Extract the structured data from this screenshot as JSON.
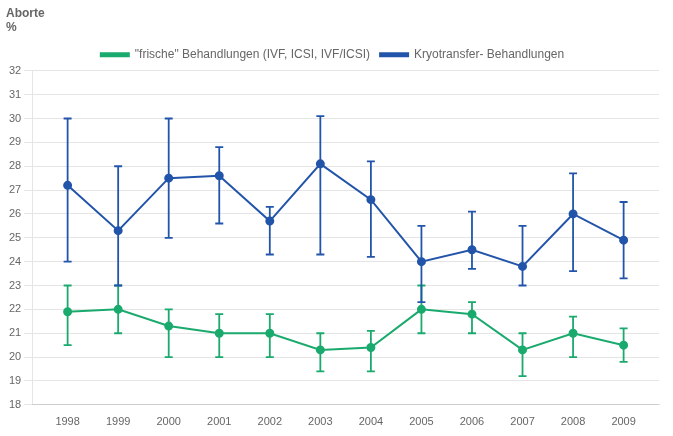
{
  "chart_data": {
    "type": "line",
    "ylabel": [
      "Aborte",
      "%"
    ],
    "x": [
      1998,
      1999,
      2000,
      2001,
      2002,
      2003,
      2004,
      2005,
      2006,
      2007,
      2008,
      2009
    ],
    "series": [
      {
        "name": "\"frische\" Behandlungen (IVF, ICSI, IVF/ICSI)",
        "color": "#1aaa6e",
        "values": [
          21.9,
          22.0,
          21.3,
          21.0,
          21.0,
          20.3,
          20.4,
          22.0,
          21.8,
          20.3,
          21.0,
          20.5
        ],
        "error_up": [
          1.1,
          1.0,
          0.7,
          0.8,
          0.8,
          0.7,
          0.7,
          1.0,
          0.5,
          0.7,
          0.7,
          0.7
        ],
        "error_down": [
          1.4,
          1.0,
          1.3,
          1.0,
          1.0,
          0.9,
          1.0,
          1.0,
          0.8,
          1.1,
          1.0,
          0.7
        ]
      },
      {
        "name": "Kryotransfer- Behandlungen",
        "color": "#2255aa",
        "values": [
          27.2,
          25.3,
          27.5,
          27.6,
          25.7,
          28.1,
          26.6,
          24.0,
          24.5,
          23.8,
          26.0,
          24.9
        ],
        "error_up": [
          2.8,
          2.7,
          2.5,
          1.2,
          0.6,
          2.0,
          1.6,
          1.5,
          1.6,
          1.7,
          1.7,
          1.6
        ],
        "error_down": [
          3.2,
          2.3,
          2.5,
          2.0,
          1.4,
          3.8,
          2.4,
          1.7,
          0.8,
          0.8,
          2.4,
          1.6
        ]
      }
    ],
    "marker": "circle",
    "line_style": "solid",
    "xlim": [
      1997.3,
      2009.7
    ],
    "xticks": [
      1998,
      1999,
      2000,
      2001,
      2002,
      2003,
      2004,
      2005,
      2006,
      2007,
      2008,
      2009
    ],
    "ylim": [
      18,
      32
    ],
    "yticks": [
      18,
      19,
      20,
      21,
      22,
      23,
      24,
      25,
      26,
      27,
      28,
      29,
      30,
      31,
      32
    ],
    "grid": "y",
    "legend": "top"
  }
}
